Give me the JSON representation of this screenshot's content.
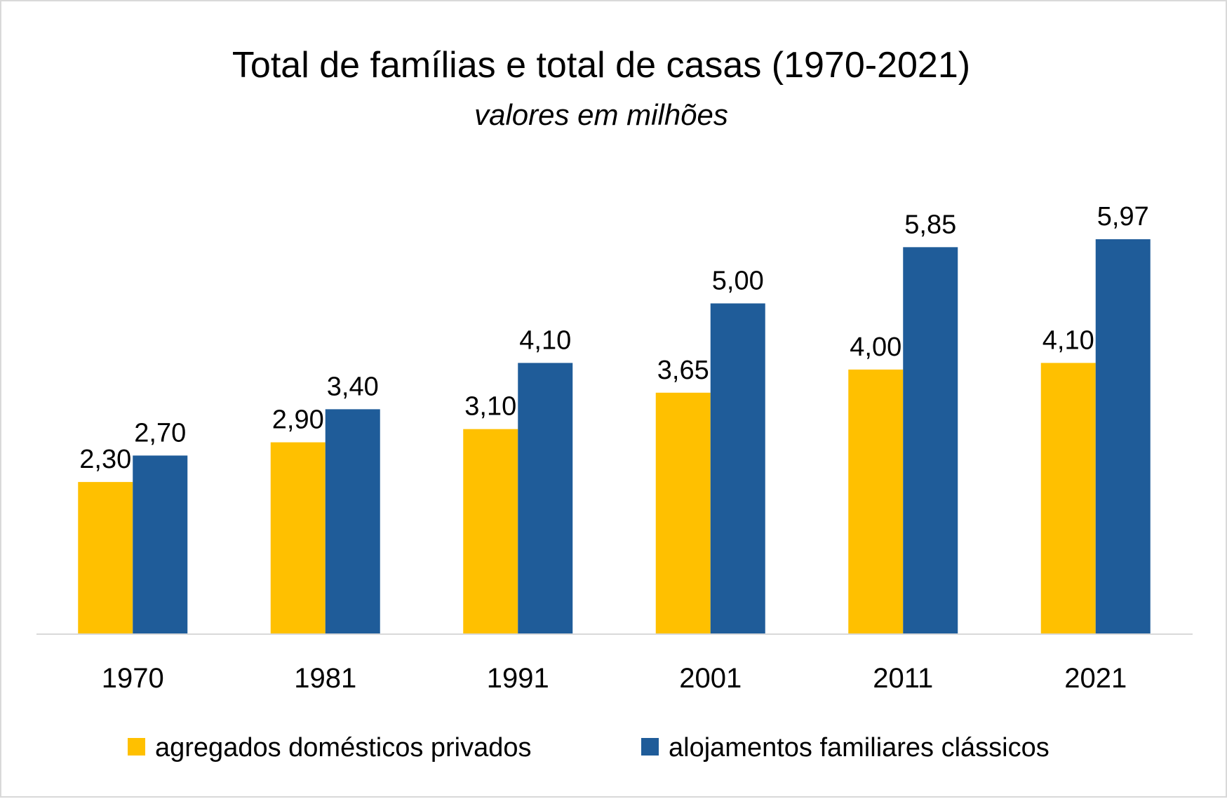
{
  "chart_data": {
    "type": "bar",
    "title": "Total de famílias e total de casas (1970-2021)",
    "subtitle": "valores em milhões",
    "xlabel": "",
    "ylabel": "",
    "ylim": [
      0,
      6.5
    ],
    "grid": false,
    "legend_position": "bottom",
    "categories": [
      "1970",
      "1981",
      "1991",
      "2001",
      "2011",
      "2021"
    ],
    "series": [
      {
        "name": "agregados domésticos privados",
        "color": "#FFC000",
        "values": [
          2.3,
          2.9,
          3.1,
          3.65,
          4.0,
          4.1
        ],
        "labels": [
          "2,30",
          "2,90",
          "3,10",
          "3,65",
          "4,00",
          "4,10"
        ]
      },
      {
        "name": "alojamentos familiares clássicos",
        "color": "#1F5C99",
        "values": [
          2.7,
          3.4,
          4.1,
          5.0,
          5.85,
          5.97
        ],
        "labels": [
          "2,70",
          "3,40",
          "4,10",
          "5,00",
          "5,85",
          "5,97"
        ]
      }
    ]
  },
  "colors": {
    "axis_line": "#d9d9d9",
    "border": "#d9d9d9",
    "text": "#000000"
  }
}
